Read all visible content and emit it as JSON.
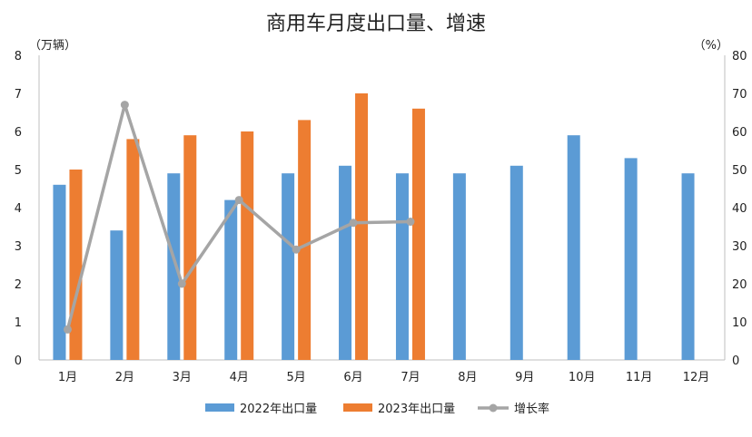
{
  "chart_data": {
    "type": "bar",
    "title": "商用车月度出口量、增速",
    "left_unit": "（万辆）",
    "right_unit": "（%）",
    "categories": [
      "1月",
      "2月",
      "3月",
      "4月",
      "5月",
      "6月",
      "7月",
      "8月",
      "9月",
      "10月",
      "11月",
      "12月"
    ],
    "series": [
      {
        "name": "2022年出口量",
        "type": "bar",
        "axis": "left",
        "color": "#5B9BD5",
        "values": [
          4.6,
          3.4,
          4.9,
          4.2,
          4.9,
          5.1,
          4.9,
          4.9,
          5.1,
          5.9,
          5.3,
          4.9
        ]
      },
      {
        "name": "2023年出口量",
        "type": "bar",
        "axis": "left",
        "color": "#ED7D31",
        "values": [
          5.0,
          5.8,
          5.9,
          6.0,
          6.3,
          7.0,
          6.6,
          null,
          null,
          null,
          null,
          null
        ]
      },
      {
        "name": "增长率",
        "type": "line",
        "axis": "right",
        "color": "#A5A5A5",
        "values": [
          8,
          67,
          20,
          42,
          29,
          36,
          36.3,
          null,
          null,
          null,
          null,
          null
        ]
      }
    ],
    "left_axis": {
      "min": 0,
      "max": 8,
      "ticks": [
        "0",
        "1",
        "2",
        "3",
        "4",
        "5",
        "6",
        "7",
        "8"
      ]
    },
    "right_axis": {
      "min": 0,
      "max": 80,
      "ticks": [
        "0",
        "10",
        "20",
        "30",
        "40",
        "50",
        "60",
        "70",
        "80"
      ]
    },
    "grid": false,
    "legend_position": "bottom"
  }
}
